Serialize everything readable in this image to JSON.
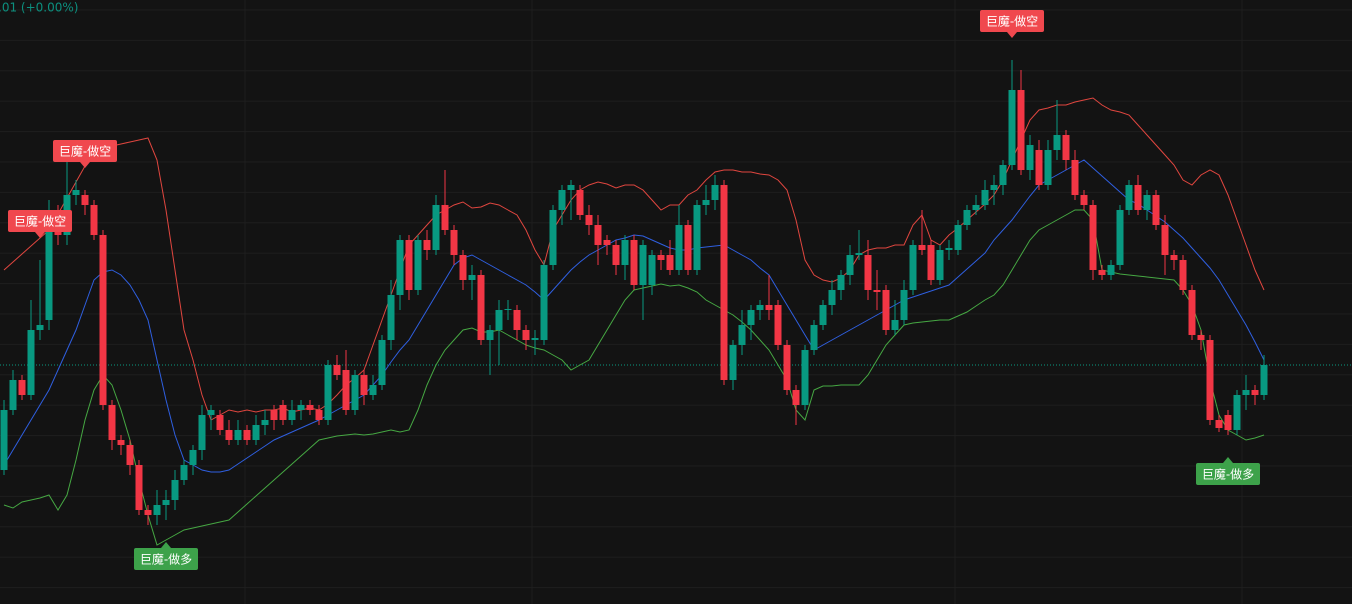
{
  "chart_data": {
    "type": "candlestick",
    "status_text": ".01 (+0.00%)",
    "ylim": [
      0,
      600
    ],
    "up_color": "#089981",
    "down_color": "#f23645",
    "candles": {
      "open": [
        130,
        190,
        220,
        205,
        270,
        280,
        385,
        365,
        405,
        405,
        395,
        365,
        195,
        160,
        155,
        135,
        90,
        85,
        95,
        100,
        120,
        135,
        150,
        185,
        185,
        170,
        160,
        170,
        160,
        175,
        190,
        195,
        180,
        190,
        195,
        190,
        180,
        235,
        230,
        190,
        225,
        205,
        215,
        260,
        305,
        360,
        310,
        360,
        350,
        395,
        370,
        345,
        320,
        325,
        260,
        270,
        290,
        290,
        270,
        260,
        260,
        335,
        390,
        410,
        410,
        385,
        375,
        360,
        355,
        335,
        360,
        315,
        315,
        345,
        345,
        330,
        375,
        330,
        395,
        400,
        415,
        220,
        255,
        275,
        290,
        295,
        295,
        255,
        210,
        195,
        250,
        275,
        295,
        310,
        325,
        345,
        345,
        310,
        310,
        270,
        280,
        310,
        355,
        355,
        320,
        350,
        350,
        375,
        390,
        395,
        410,
        415,
        435,
        510,
        430,
        450,
        415,
        450,
        465,
        440,
        405,
        395,
        330,
        325,
        335,
        390,
        415,
        390,
        405,
        375,
        345,
        340,
        310,
        265,
        260,
        180,
        185,
        170,
        205,
        210,
        205
      ],
      "high": [
        200,
        230,
        225,
        300,
        340,
        400,
        395,
        440,
        420,
        410,
        400,
        370,
        200,
        165,
        160,
        140,
        95,
        110,
        110,
        130,
        140,
        155,
        195,
        195,
        190,
        180,
        180,
        175,
        185,
        190,
        195,
        200,
        200,
        200,
        200,
        195,
        240,
        245,
        250,
        230,
        230,
        225,
        265,
        320,
        365,
        365,
        365,
        370,
        405,
        430,
        375,
        350,
        335,
        330,
        275,
        300,
        300,
        295,
        275,
        270,
        340,
        395,
        415,
        420,
        415,
        395,
        385,
        365,
        360,
        365,
        365,
        360,
        350,
        350,
        360,
        395,
        380,
        400,
        415,
        425,
        420,
        260,
        290,
        295,
        300,
        325,
        300,
        260,
        215,
        255,
        280,
        300,
        320,
        330,
        355,
        370,
        360,
        330,
        315,
        300,
        320,
        360,
        390,
        360,
        355,
        360,
        380,
        395,
        405,
        420,
        425,
        440,
        540,
        530,
        465,
        460,
        460,
        500,
        470,
        450,
        410,
        400,
        335,
        340,
        395,
        420,
        425,
        410,
        410,
        385,
        350,
        345,
        315,
        270,
        265,
        185,
        190,
        210,
        225,
        215,
        245
      ],
      "low": [
        125,
        185,
        200,
        200,
        260,
        270,
        355,
        355,
        395,
        385,
        360,
        190,
        150,
        145,
        125,
        85,
        75,
        75,
        80,
        90,
        115,
        125,
        140,
        170,
        165,
        155,
        155,
        155,
        155,
        165,
        170,
        175,
        175,
        180,
        185,
        175,
        175,
        220,
        185,
        185,
        195,
        200,
        210,
        250,
        290,
        300,
        305,
        340,
        345,
        365,
        335,
        310,
        300,
        255,
        225,
        235,
        280,
        260,
        250,
        245,
        255,
        330,
        375,
        380,
        380,
        365,
        335,
        345,
        325,
        320,
        310,
        280,
        305,
        330,
        325,
        325,
        325,
        325,
        385,
        390,
        215,
        210,
        245,
        260,
        280,
        280,
        250,
        205,
        175,
        190,
        245,
        270,
        285,
        300,
        315,
        340,
        300,
        290,
        265,
        265,
        275,
        305,
        345,
        315,
        315,
        340,
        345,
        370,
        385,
        390,
        395,
        405,
        430,
        425,
        420,
        410,
        410,
        440,
        430,
        400,
        390,
        320,
        320,
        320,
        330,
        385,
        385,
        380,
        370,
        325,
        330,
        305,
        260,
        250,
        175,
        168,
        165,
        165,
        190,
        195,
        200
      ],
      "close": [
        190,
        220,
        205,
        270,
        275,
        385,
        365,
        405,
        410,
        395,
        365,
        195,
        160,
        155,
        135,
        90,
        85,
        95,
        100,
        120,
        135,
        150,
        185,
        190,
        170,
        160,
        170,
        160,
        175,
        180,
        180,
        180,
        190,
        195,
        190,
        180,
        235,
        225,
        190,
        225,
        205,
        215,
        260,
        305,
        360,
        310,
        360,
        350,
        395,
        370,
        345,
        320,
        325,
        260,
        270,
        290,
        291,
        270,
        260,
        262,
        335,
        390,
        410,
        415,
        385,
        375,
        355,
        355,
        335,
        360,
        315,
        355,
        345,
        340,
        330,
        375,
        330,
        395,
        400,
        415,
        220,
        255,
        275,
        290,
        295,
        290,
        255,
        210,
        195,
        250,
        275,
        295,
        310,
        325,
        345,
        347,
        310,
        308,
        270,
        280,
        310,
        355,
        350,
        320,
        350,
        352,
        375,
        390,
        395,
        410,
        415,
        435,
        510,
        430,
        455,
        415,
        450,
        465,
        440,
        405,
        395,
        330,
        325,
        335,
        390,
        415,
        390,
        405,
        375,
        345,
        340,
        310,
        265,
        260,
        180,
        172,
        170,
        205,
        210,
        205,
        235
      ]
    },
    "bands": [
      {
        "color": "#e0463f",
        "values": [
          330,
          338,
          346,
          354,
          362,
          370,
          386,
          402,
          418,
          434,
          450,
          452,
          454,
          456,
          458,
          460,
          462,
          440,
          390,
          330,
          270,
          240,
          205,
          180,
          185,
          190,
          188,
          190,
          188,
          190,
          190,
          192,
          188,
          190,
          192,
          190,
          196,
          205,
          215,
          222,
          230,
          255,
          280,
          305,
          330,
          355,
          365,
          375,
          385,
          390,
          395,
          398,
          392,
          393,
          397,
          395,
          390,
          385,
          370,
          350,
          335,
          370,
          385,
          400,
          410,
          415,
          418,
          416,
          412,
          415,
          415,
          410,
          400,
          390,
          395,
          395,
          405,
          410,
          420,
          428,
          430,
          430,
          428,
          428,
          426,
          425,
          420,
          410,
          380,
          340,
          325,
          320,
          318,
          322,
          330,
          345,
          350,
          352,
          352,
          355,
          355,
          375,
          385,
          360,
          355,
          365,
          372,
          380,
          388,
          396,
          405,
          420,
          440,
          460,
          480,
          490,
          492,
          495,
          495,
          498,
          500,
          502,
          495,
          490,
          488,
          485,
          475,
          465,
          455,
          445,
          435,
          420,
          415,
          425,
          430,
          425,
          405,
          380,
          355,
          330,
          310
        ]
      },
      {
        "color": "#2f5fe0",
        "values": [
          135,
          150,
          165,
          180,
          195,
          210,
          230,
          250,
          270,
          295,
          320,
          328,
          330,
          325,
          315,
          300,
          280,
          240,
          200,
          165,
          140,
          135,
          130,
          128,
          128,
          130,
          136,
          142,
          148,
          154,
          160,
          164,
          168,
          172,
          176,
          180,
          185,
          190,
          195,
          200,
          205,
          215,
          225,
          238,
          250,
          260,
          275,
          290,
          305,
          320,
          335,
          342,
          345,
          340,
          335,
          330,
          325,
          320,
          315,
          308,
          300,
          310,
          320,
          330,
          338,
          345,
          350,
          355,
          360,
          362,
          365,
          364,
          360,
          356,
          352,
          350,
          350,
          352,
          353,
          354,
          355,
          350,
          345,
          340,
          332,
          325,
          310,
          295,
          280,
          265,
          250,
          255,
          260,
          265,
          270,
          275,
          280,
          285,
          290,
          295,
          300,
          303,
          306,
          309,
          312,
          315,
          323,
          331,
          339,
          347,
          360,
          370,
          380,
          392,
          404,
          415,
          420,
          425,
          430,
          435,
          440,
          432,
          424,
          416,
          408,
          400,
          396,
          390,
          384,
          378,
          370,
          362,
          352,
          342,
          332,
          320,
          305,
          290,
          275,
          258,
          240
        ]
      },
      {
        "color": "#46a843",
        "values": [
          95,
          92,
          98,
          100,
          102,
          105,
          90,
          105,
          140,
          180,
          210,
          225,
          215,
          190,
          160,
          120,
          85,
          55,
          60,
          65,
          70,
          72,
          74,
          76,
          78,
          80,
          88,
          96,
          104,
          112,
          120,
          128,
          136,
          144,
          152,
          160,
          162,
          164,
          165,
          166,
          165,
          166,
          168,
          170,
          168,
          170,
          190,
          215,
          235,
          250,
          260,
          270,
          272,
          268,
          268,
          270,
          265,
          260,
          255,
          252,
          250,
          245,
          240,
          230,
          235,
          240,
          255,
          270,
          285,
          300,
          310,
          312,
          314,
          316,
          314,
          315,
          312,
          308,
          300,
          295,
          290,
          285,
          278,
          270,
          260,
          250,
          235,
          220,
          190,
          180,
          210,
          214,
          214,
          215,
          215,
          215,
          225,
          240,
          255,
          265,
          275,
          277,
          278,
          279,
          280,
          280,
          284,
          288,
          294,
          300,
          305,
          315,
          330,
          345,
          360,
          370,
          375,
          380,
          385,
          390,
          390,
          380,
          330,
          328,
          326,
          325,
          324,
          323,
          322,
          321,
          320,
          310,
          295,
          270,
          220,
          185,
          170,
          165,
          160,
          162,
          165
        ]
      }
    ],
    "annotations": [
      {
        "text": "巨魔-做空",
        "index": 4,
        "position": "above",
        "color": "#f0484e"
      },
      {
        "text": "巨魔-做空",
        "index": 9,
        "position": "above",
        "color": "#f0484e"
      },
      {
        "text": "巨魔-做空",
        "index": 112,
        "position": "above",
        "color": "#f0484e"
      },
      {
        "text": "巨魔-做多",
        "index": 18,
        "position": "below",
        "color": "#3da24a"
      },
      {
        "text": "巨魔-做多",
        "index": 136,
        "position": "below",
        "color": "#3da24a"
      }
    ]
  }
}
